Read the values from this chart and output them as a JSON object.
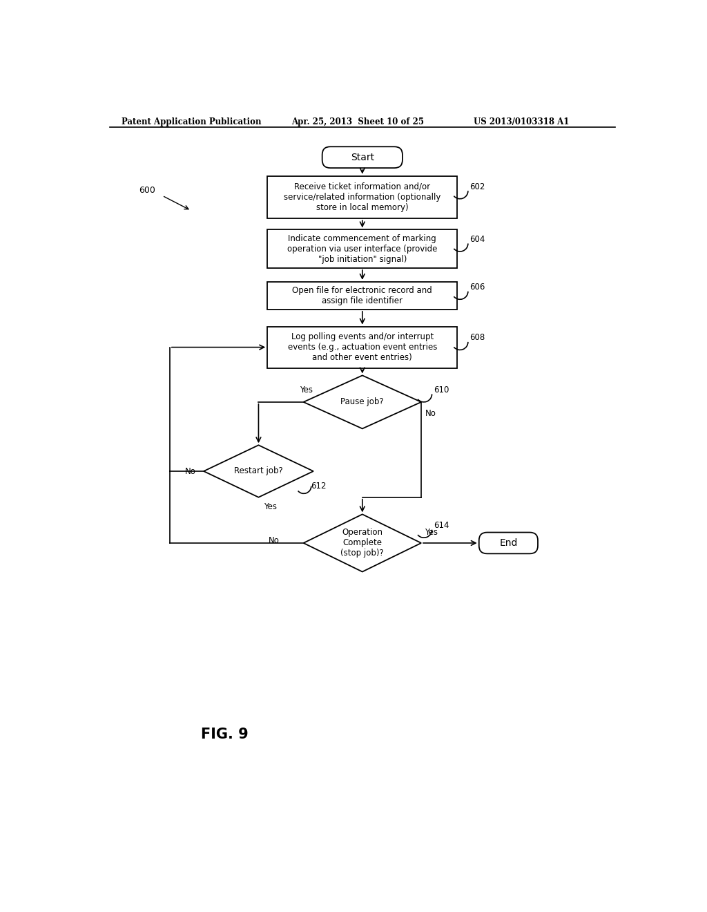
{
  "header_left": "Patent Application Publication",
  "header_mid": "Apr. 25, 2013  Sheet 10 of 25",
  "header_right": "US 2013/0103318 A1",
  "fig_label": "FIG. 9",
  "figure_number": "600",
  "bg_color": "#ffffff",
  "text_color": "#000000",
  "line_color": "#000000",
  "font_size": 8.5,
  "box_text_602": "Receive ticket information and/or\nservice/related information (optionally\nstore in local memory)",
  "box_text_604": "Indicate commencement of marking\noperation via user interface (provide\n\"job initiation\" signal)",
  "box_text_606": "Open file for electronic record and\nassign file identifier",
  "box_text_608": "Log polling events and/or interrupt\nevents (e.g., actuation event entries\nand other event entries)",
  "dia_text_610": "Pause job?",
  "dia_text_612": "Restart job?",
  "dia_text_614": "Operation\nComplete\n(stop job)?",
  "label_602": "602",
  "label_604": "604",
  "label_606": "606",
  "label_608": "608",
  "label_610": "610",
  "label_612": "612",
  "label_614": "614"
}
